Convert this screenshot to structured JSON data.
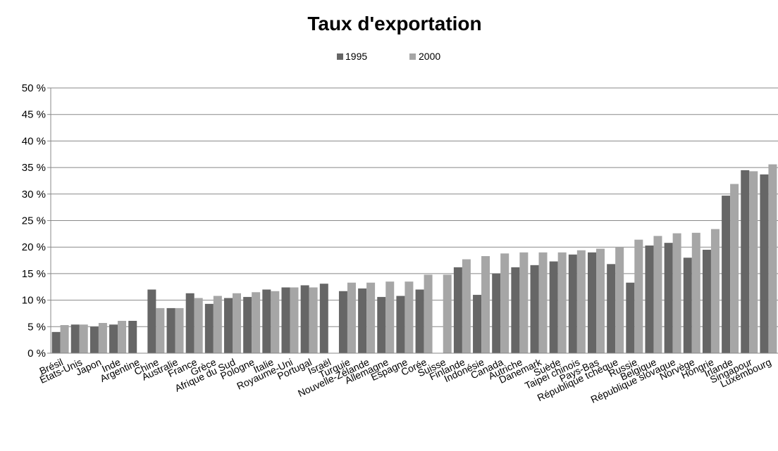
{
  "chart_data": {
    "type": "bar",
    "title": "Taux d'exportation",
    "xlabel": "",
    "ylabel": "",
    "ylim": [
      0,
      50
    ],
    "y_ticks": [
      "0 %",
      "5 %",
      "10 %",
      "15 %",
      "20 %",
      "25 %",
      "30 %",
      "35 %",
      "40 %",
      "45 %",
      "50 %"
    ],
    "grid": true,
    "legend_position": "top-center",
    "colors": {
      "1995": "#666666",
      "2000": "#a6a6a6",
      "grid": "#888888"
    },
    "categories": [
      "Brésil",
      "États-Unis",
      "Japon",
      "Inde",
      "Argentine",
      "Chine",
      "Australie",
      "France",
      "Grèce",
      "Afrique du Sud",
      "Pologne",
      "Italie",
      "Royaume-Uni",
      "Portugal",
      "Israël",
      "Turquie",
      "Nouvelle-Zélande",
      "Allemagne",
      "Espagne",
      "Corée",
      "Suisse",
      "Finlande",
      "Indonésie",
      "Canada",
      "Autriche",
      "Danemark",
      "Suède",
      "Taipei chinois",
      "Pays-Bas",
      "République tchèque",
      "Russie",
      "Belgique",
      "République slovaque",
      "Norvège",
      "Hongrie",
      "Irlande",
      "Singapour",
      "Luxembourg"
    ],
    "series": [
      {
        "name": "1995",
        "values": [
          4.0,
          5.4,
          5.0,
          5.4,
          6.1,
          12.0,
          8.5,
          11.3,
          9.3,
          10.4,
          10.6,
          12.0,
          12.4,
          12.8,
          13.1,
          11.7,
          12.2,
          10.6,
          10.8,
          12.0,
          null,
          16.2,
          11.0,
          15.0,
          16.2,
          16.6,
          17.3,
          18.6,
          19.0,
          16.8,
          13.3,
          20.3,
          20.8,
          18.0,
          19.5,
          29.7,
          34.5,
          33.7
        ]
      },
      {
        "name": "2000",
        "values": [
          5.3,
          5.4,
          5.7,
          6.1,
          null,
          8.5,
          8.5,
          10.4,
          10.8,
          11.3,
          11.5,
          11.7,
          12.4,
          12.4,
          null,
          13.3,
          13.3,
          13.5,
          13.5,
          14.8,
          14.8,
          17.7,
          18.3,
          18.8,
          19.0,
          19.0,
          19.0,
          19.4,
          19.7,
          20.0,
          21.4,
          22.1,
          22.6,
          22.7,
          23.4,
          31.9,
          34.3,
          35.6
        ]
      }
    ]
  }
}
